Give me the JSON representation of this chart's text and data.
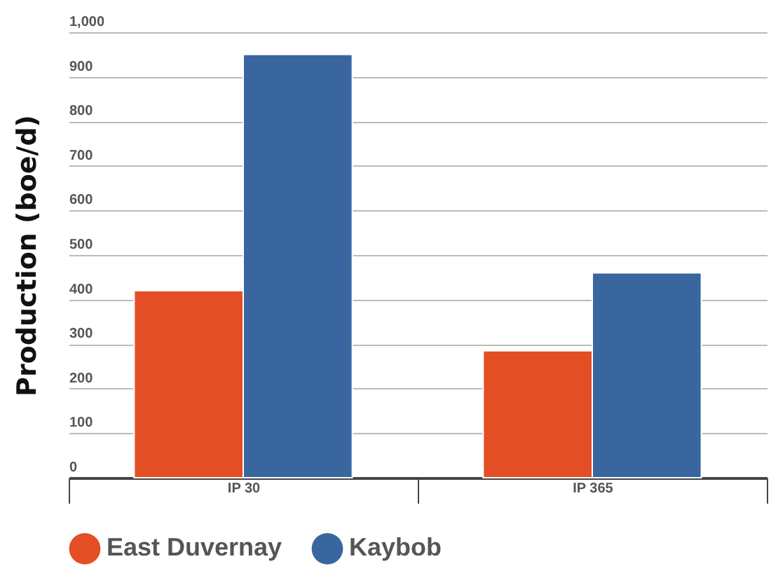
{
  "chart_data": {
    "type": "bar",
    "ylabel": "Production (boe/d)",
    "categories": [
      "IP 30",
      "IP 365"
    ],
    "series": [
      {
        "name": "East Duvernay",
        "color": "#e34e24",
        "values": [
          420,
          285
        ]
      },
      {
        "name": "Kaybob",
        "color": "#3a66a0",
        "values": [
          950,
          460
        ]
      }
    ],
    "ylim": [
      0,
      1000
    ],
    "yticks": [
      0,
      100,
      200,
      300,
      400,
      500,
      600,
      700,
      800,
      900,
      {
        "value": 1000,
        "label": "1,000"
      }
    ],
    "grid": "y",
    "legend": "bottom"
  }
}
